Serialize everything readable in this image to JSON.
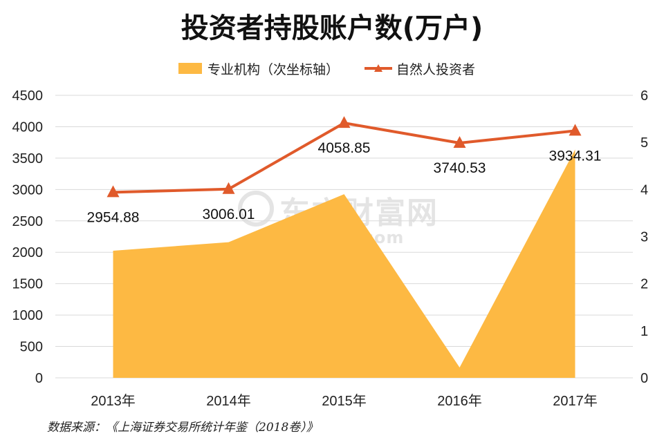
{
  "chart_data": {
    "type": "area",
    "title": "投资者持股账户数(万户)",
    "categories": [
      "2013年",
      "2014年",
      "2015年",
      "2016年",
      "2017年"
    ],
    "series": [
      {
        "name": "专业机构（次坐标轴）",
        "type": "area",
        "axis": "secondary",
        "values": [
          2.7,
          2.88,
          3.9,
          0.22,
          4.85
        ],
        "color": "#FDB943"
      },
      {
        "name": "自然人投资者",
        "type": "line",
        "axis": "primary",
        "values": [
          2954.88,
          3006.01,
          4058.85,
          3740.53,
          3934.31
        ],
        "labels": [
          "2954.88",
          "3006.01",
          "4058.85",
          "3740.53",
          "3934.31"
        ],
        "color": "#E05A2B",
        "marker": "triangle"
      }
    ],
    "y_left": {
      "min": 0,
      "max": 4500,
      "ticks": [
        "0",
        "500",
        "1000",
        "1500",
        "2000",
        "2500",
        "3000",
        "3500",
        "4000",
        "4500"
      ]
    },
    "y_right": {
      "min": 0,
      "max": 6,
      "ticks": [
        "0",
        "1",
        "2",
        "3",
        "4",
        "5",
        "6"
      ]
    },
    "grid": true,
    "legend_position": "top"
  },
  "legend": {
    "area_label": "专业机构（次坐标轴）",
    "line_label": "自然人投资者"
  },
  "source": "数据来源：《上海证券交易所统计年鉴（2018卷）》",
  "watermark": {
    "cn": "东方财富网",
    "en": "eastmoney.com"
  }
}
